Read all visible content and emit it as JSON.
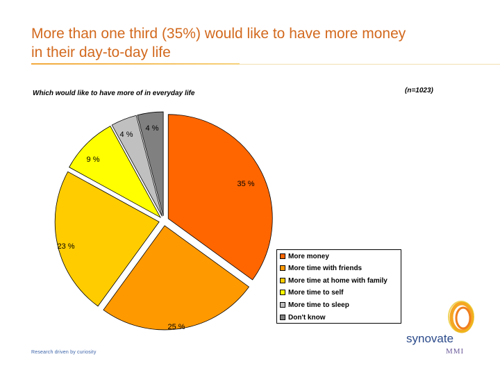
{
  "header": {
    "title_line1": "More than one third (35%) would like to have more money",
    "title_line2": "in their day-to-day life"
  },
  "chart_data": {
    "type": "pie",
    "title": "Which would like to have more of in everyday life",
    "sample_size": "(n=1023)",
    "slices": [
      {
        "name": "More money",
        "value": 35,
        "label": "35 %",
        "color": "#ff6600"
      },
      {
        "name": "More time with friends",
        "value": 25,
        "label": "25 %",
        "color": "#ff9900"
      },
      {
        "name": "More time at home with family",
        "value": 23,
        "label": "23 %",
        "color": "#ffcc00"
      },
      {
        "name": "More time to self",
        "value": 9,
        "label": "9 %",
        "color": "#ffff00"
      },
      {
        "name": "More time to sleep",
        "value": 4,
        "label": "4 %",
        "color": "#c0c0c0"
      },
      {
        "name": "Don't know",
        "value": 4,
        "label": "4 %",
        "color": "#808080"
      }
    ]
  },
  "footer": {
    "tagline": "Research driven by curiosity"
  },
  "logo": {
    "name": "synovate",
    "sub": "MMI",
    "colors": [
      "#f5a623",
      "#f07e1e",
      "#e8c21a"
    ]
  }
}
